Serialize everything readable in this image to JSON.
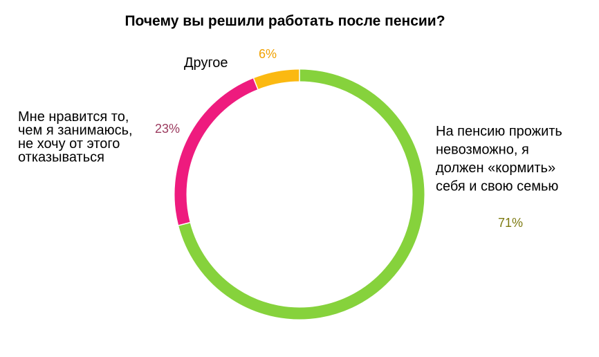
{
  "chart_data": {
    "type": "pie",
    "variant": "donut",
    "title": "Почему вы решили работать  после пенсии?",
    "slices": [
      {
        "label": "На пенсию прожить невозможно, я должен «кормить» себя и свою семью",
        "label_lines": [
          "На пенсию прожить",
          "невозможно, я",
          "должен  «кормить»",
          "себя и свою семью"
        ],
        "value": 71,
        "value_label": "71%",
        "color": "#86d23c",
        "value_label_color": "#7d7a10"
      },
      {
        "label": "Мне нравится то, чем я занимаюсь, не хочу от этого отказываться",
        "label_lines": [
          "Мне нравится то,",
          "чем я занимаюсь,",
          "не хочу от этого",
          "отказываться"
        ],
        "value": 23,
        "value_label": "23%",
        "color": "#ee1b7e",
        "value_label_color": "#9b3a5e"
      },
      {
        "label": "Другое",
        "label_lines": [
          "Другое"
        ],
        "value": 6,
        "value_label": "6%",
        "color": "#fbb911",
        "value_label_color": "#f1a100"
      }
    ],
    "legend": "none"
  }
}
